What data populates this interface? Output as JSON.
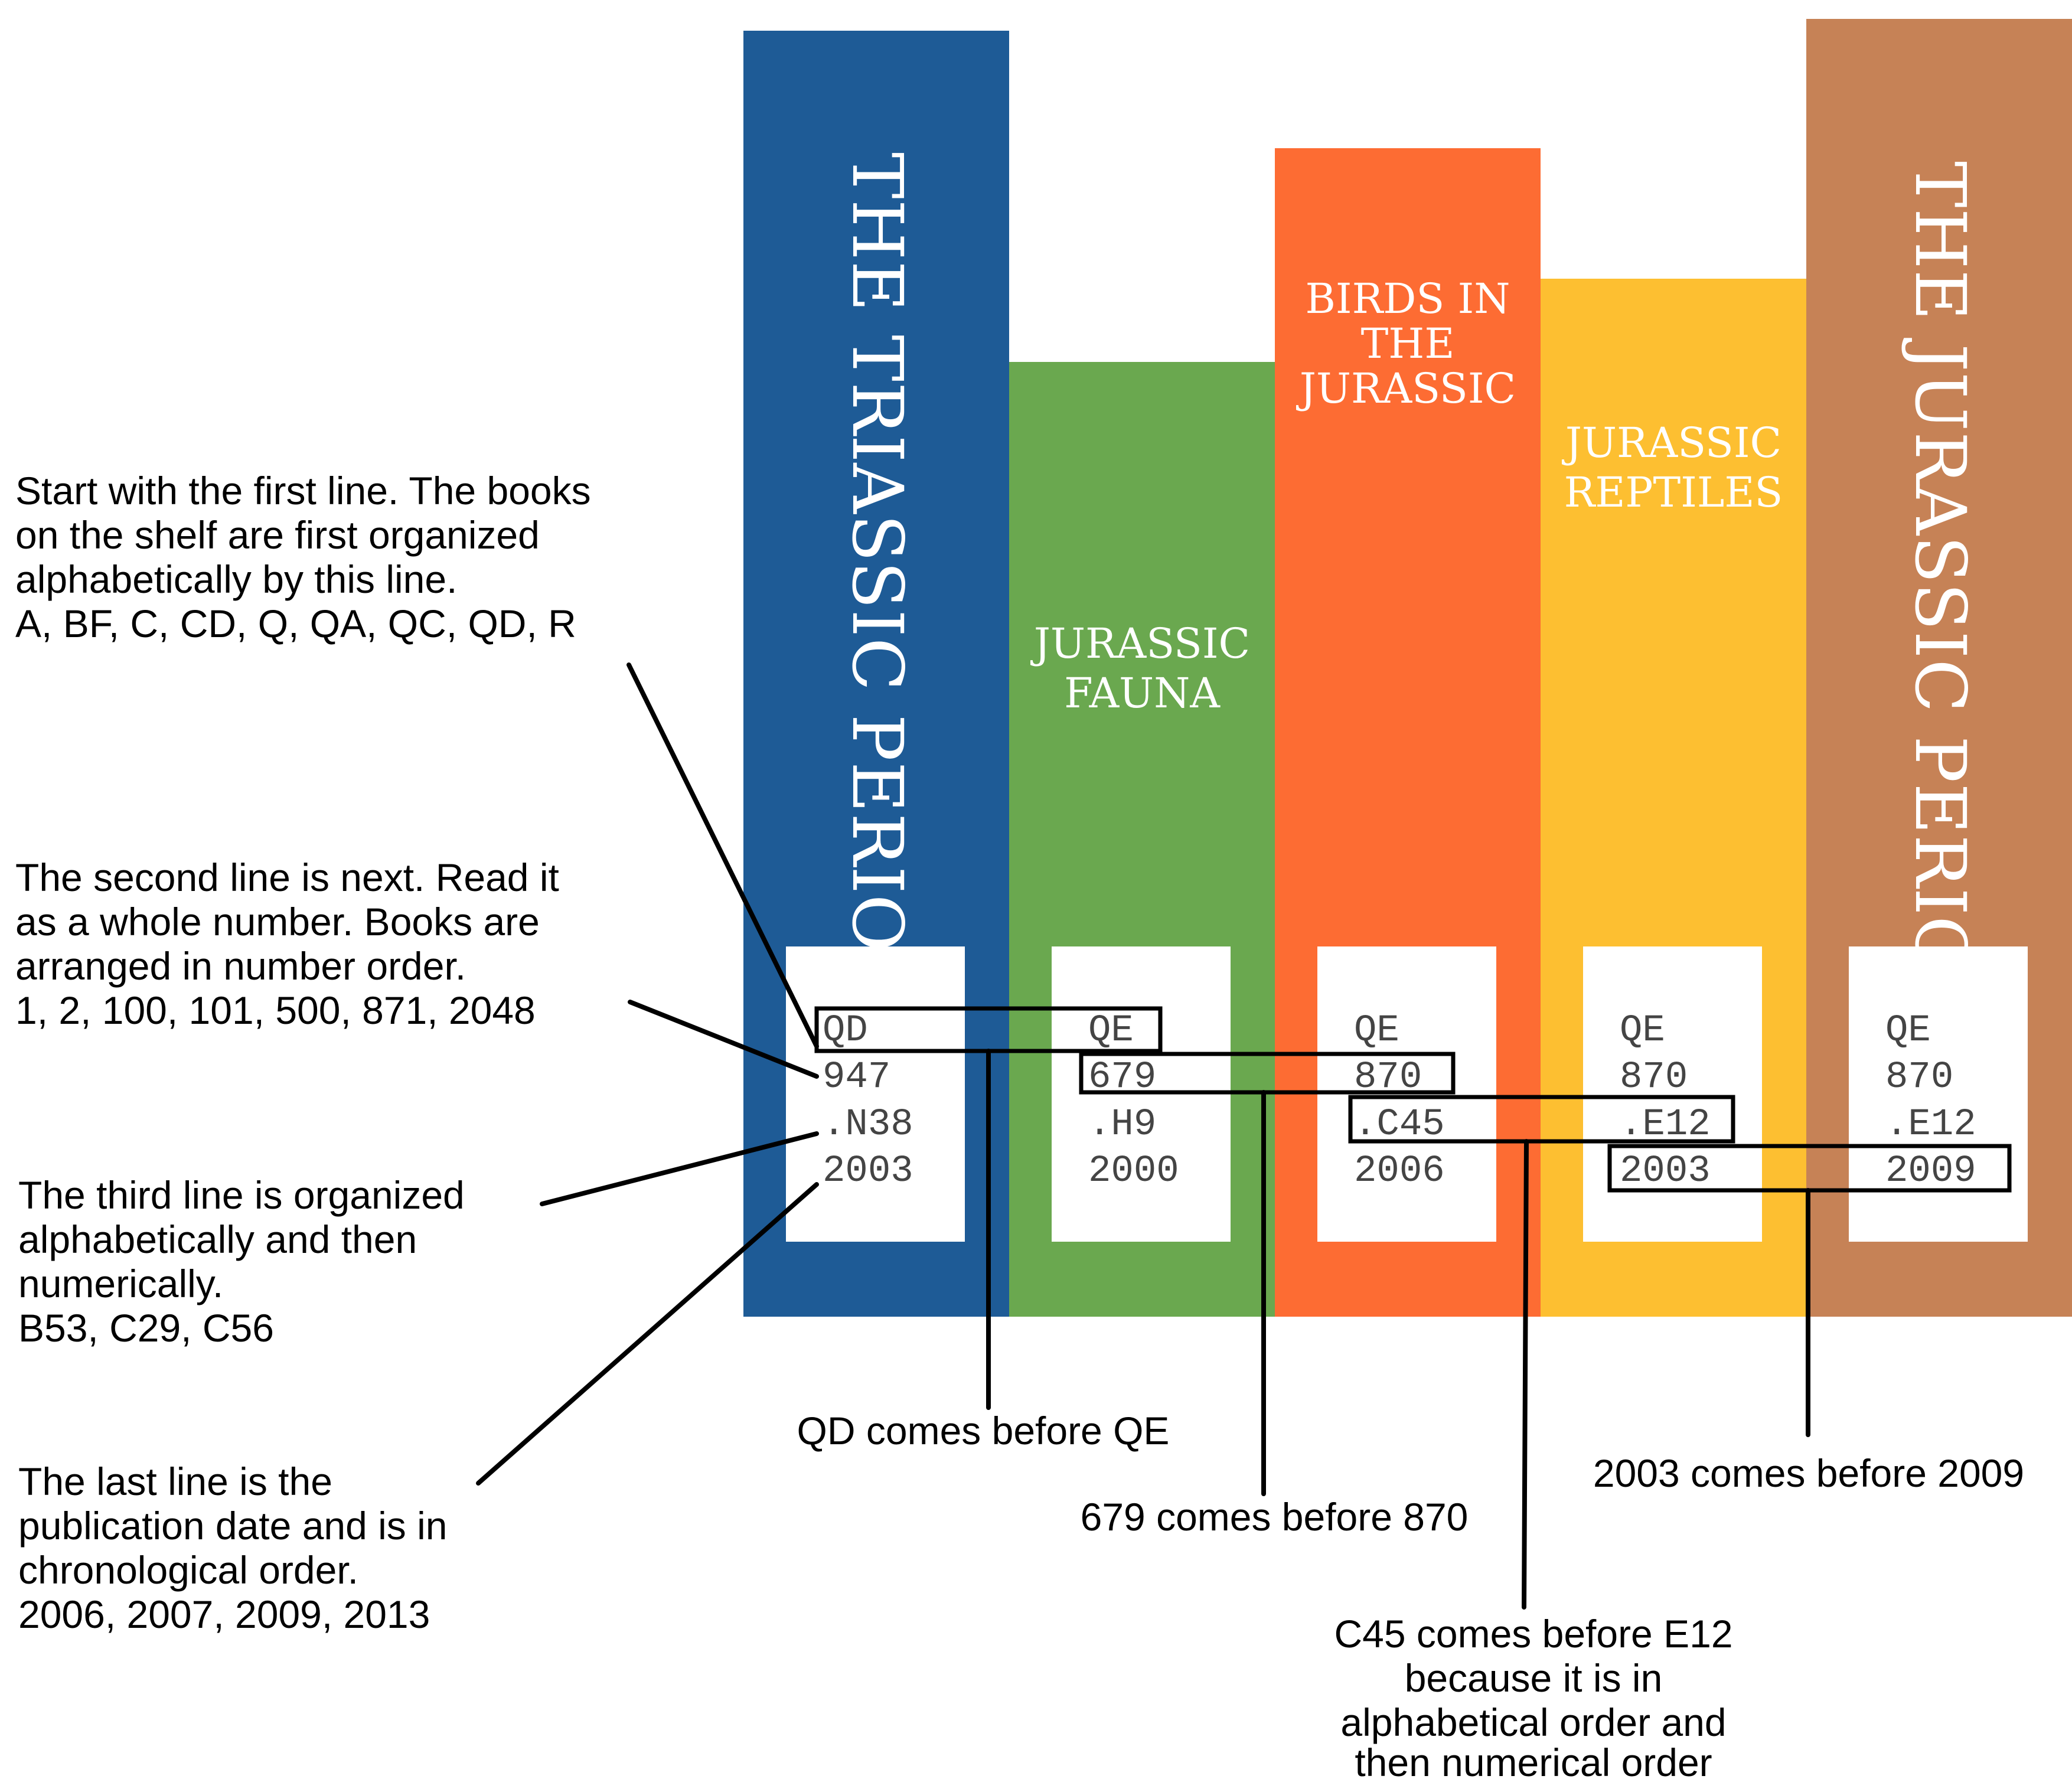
{
  "colors": {
    "book_1": "#1e5b96",
    "book_2": "#6aa84f",
    "book_3": "#fd6c33",
    "book_4": "#fdbf31",
    "book_5": "#c68256",
    "label_bg": "#ffffff",
    "outline": "#000000"
  },
  "books": [
    {
      "title_lines": [
        "THE TRIASSIC PERIOD"
      ],
      "orientation": "vertical",
      "call_number": {
        "class": "QD",
        "number": "947",
        "cutter": ".N38",
        "year": "2003"
      }
    },
    {
      "title_lines": [
        "JURASSIC",
        "FAUNA"
      ],
      "orientation": "horizontal",
      "call_number": {
        "class": "QE",
        "number": "679",
        "cutter": ".H9",
        "year": "2000"
      }
    },
    {
      "title_lines": [
        "BIRDS IN",
        "THE",
        "JURASSIC"
      ],
      "orientation": "horizontal",
      "call_number": {
        "class": "QE",
        "number": "870",
        "cutter": ".C45",
        "year": "2006"
      }
    },
    {
      "title_lines": [
        "JURASSIC",
        "REPTILES"
      ],
      "orientation": "horizontal",
      "call_number": {
        "class": "QE",
        "number": "870",
        "cutter": ".E12",
        "year": "2003"
      }
    },
    {
      "title_lines": [
        "THE JURASSIC PERIOD"
      ],
      "orientation": "vertical",
      "call_number": {
        "class": "QE",
        "number": "870",
        "cutter": ".E12",
        "year": "2009"
      }
    }
  ],
  "left_notes": [
    {
      "id": "first-line",
      "lines": [
        "Start with the first line. The books",
        "on the shelf are first organized",
        "alphabetically by this line.",
        "A, BF, C, CD, Q, QA, QC, QD, R"
      ]
    },
    {
      "id": "second-line",
      "lines": [
        "The second line is next. Read it",
        "as a whole number. Books are",
        "arranged in number order.",
        "1, 2, 100, 101, 500, 871, 2048"
      ]
    },
    {
      "id": "third-line",
      "lines": [
        "The third line is organized",
        "alphabetically and then",
        "numerically.",
        "B53, C29, C56"
      ]
    },
    {
      "id": "last-line",
      "lines": [
        "The last line is the",
        "publication date and is in",
        "chronological order.",
        "2006, 2007, 2009, 2013"
      ]
    }
  ],
  "bottom_notes": [
    {
      "id": "qd-qe",
      "lines": [
        "QD comes before QE"
      ]
    },
    {
      "id": "679-870",
      "lines": [
        "679 comes before 870"
      ]
    },
    {
      "id": "c45-e12",
      "lines": [
        "C45 comes before E12",
        "because it is in",
        "alphabetical order and",
        "then numerical order"
      ]
    },
    {
      "id": "2003-2009",
      "lines": [
        "2003 comes before 2009"
      ]
    }
  ]
}
